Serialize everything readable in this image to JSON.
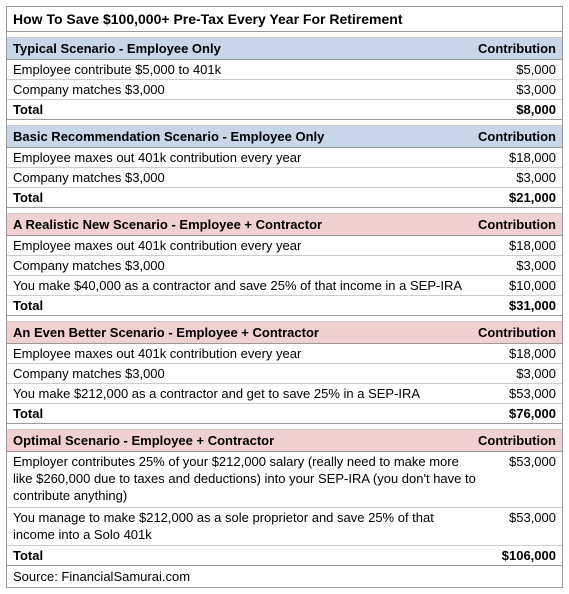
{
  "title": "How To Save $100,000+ Pre-Tax Every Year For Retirement",
  "contribution_label": "Contribution",
  "total_label": "Total",
  "source": "Source: FinancialSamurai.com",
  "colors": {
    "header_blue": "#c8d6e8",
    "header_pink": "#f0d0d0",
    "border_dark": "#999999",
    "border_light": "#cccccc",
    "text": "#000000",
    "background": "#ffffff"
  },
  "fonts": {
    "title_size": 14,
    "body_size": 13,
    "family": "Arial"
  },
  "sections": [
    {
      "header": "Typical Scenario - Employee Only",
      "color_key": "header_blue",
      "rows": [
        {
          "desc": "Employee contribute $5,000 to 401k",
          "amount": "$5,000"
        },
        {
          "desc": "Company matches $3,000",
          "amount": "$3,000"
        }
      ],
      "total": "$8,000"
    },
    {
      "header": "Basic Recommendation Scenario - Employee Only",
      "color_key": "header_blue",
      "rows": [
        {
          "desc": "Employee maxes out 401k contribution every year",
          "amount": "$18,000"
        },
        {
          "desc": "Company matches $3,000",
          "amount": "$3,000"
        }
      ],
      "total": "$21,000"
    },
    {
      "header": "A Realistic New Scenario - Employee + Contractor",
      "color_key": "header_pink",
      "rows": [
        {
          "desc": "Employee maxes out 401k contribution every year",
          "amount": "$18,000"
        },
        {
          "desc": "Company matches $3,000",
          "amount": "$3,000"
        },
        {
          "desc": "You make $40,000 as a contractor and save 25% of that income in a SEP-IRA",
          "amount": "$10,000"
        }
      ],
      "total": "$31,000"
    },
    {
      "header": "An Even Better Scenario - Employee + Contractor",
      "color_key": "header_pink",
      "rows": [
        {
          "desc": "Employee maxes out 401k contribution every year",
          "amount": "$18,000"
        },
        {
          "desc": "Company matches $3,000",
          "amount": "$3,000"
        },
        {
          "desc": "You make $212,000 as a contractor and get to save 25% in a SEP-IRA",
          "amount": "$53,000"
        }
      ],
      "total": "$76,000"
    },
    {
      "header": "Optimal Scenario - Employee + Contractor",
      "color_key": "header_pink",
      "rows": [
        {
          "desc": "Employer contributes 25% of your $212,000 salary (really need to make more like $260,000 due to taxes and deductions) into your SEP-IRA (you don't have to contribute anything)",
          "amount": "$53,000"
        },
        {
          "desc": "You manage to make $212,000 as a sole proprietor and save 25% of that income into a Solo 401k",
          "amount": "$53,000"
        }
      ],
      "total": "$106,000"
    }
  ]
}
